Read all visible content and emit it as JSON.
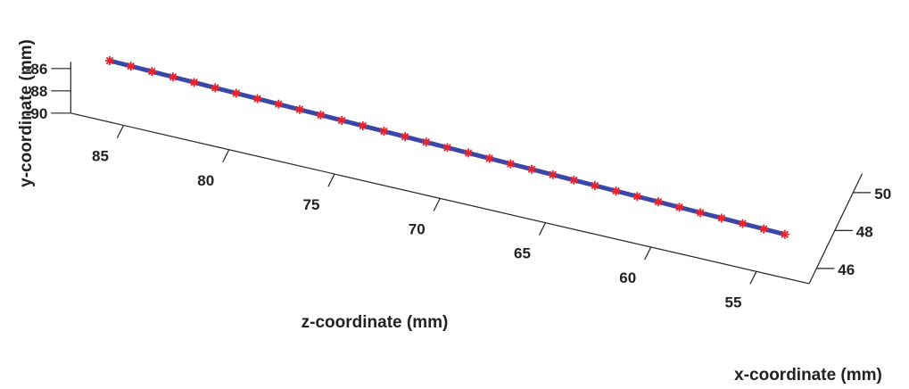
{
  "chart_data": {
    "type": "line3d",
    "title": "",
    "colors": {
      "line": "#3a46a8",
      "marker": "#e8252e"
    },
    "marker": "asterisk",
    "axes": {
      "x": {
        "label": "x-coordinate (mm)",
        "ticks": [
          46,
          48,
          50
        ],
        "range": [
          45.2,
          51
        ]
      },
      "y": {
        "label": "y-coordinate (mm)",
        "ticks": [
          -86,
          -88,
          -90
        ],
        "range": [
          -90,
          -85.4
        ]
      },
      "z": {
        "label": "z-coordinate (mm)",
        "ticks": [
          85,
          80,
          75,
          70,
          65,
          60,
          55
        ],
        "range": [
          87.5,
          52.5
        ]
      }
    },
    "series": [
      {
        "points": {
          "z": [
            86.0,
            85.0,
            84.0,
            83.0,
            82.0,
            81.0,
            80.0,
            79.0,
            78.0,
            77.0,
            76.0,
            75.0,
            74.0,
            73.0,
            72.0,
            71.0,
            70.0,
            69.0,
            68.0,
            67.0,
            66.0,
            65.0,
            64.0,
            63.0,
            62.0,
            61.0,
            60.0,
            59.0,
            58.0,
            57.0,
            56.0,
            55.0,
            54.0
          ],
          "x": [
            46.0,
            46.0,
            46.0,
            46.0,
            46.0,
            46.0,
            46.0,
            46.0,
            46.0,
            46.0,
            46.0,
            46.0,
            46.0,
            46.0,
            46.0,
            46.0,
            46.0,
            46.0,
            46.0,
            46.0,
            46.0,
            46.0,
            46.0,
            46.0,
            46.0,
            46.0,
            46.0,
            46.0,
            46.0,
            46.0,
            46.0,
            46.0,
            46.0
          ],
          "y": [
            -86.0,
            -86.05,
            -86.1,
            -86.15,
            -86.2,
            -86.25,
            -86.3,
            -86.35,
            -86.4,
            -86.45,
            -86.5,
            -86.55,
            -86.6,
            -86.65,
            -86.7,
            -86.75,
            -86.8,
            -86.85,
            -86.9,
            -86.95,
            -87.0,
            -87.05,
            -87.1,
            -87.15,
            -87.2,
            -87.25,
            -87.3,
            -87.35,
            -87.4,
            -87.45,
            -87.5,
            -87.55,
            -87.6
          ]
        }
      }
    ]
  }
}
